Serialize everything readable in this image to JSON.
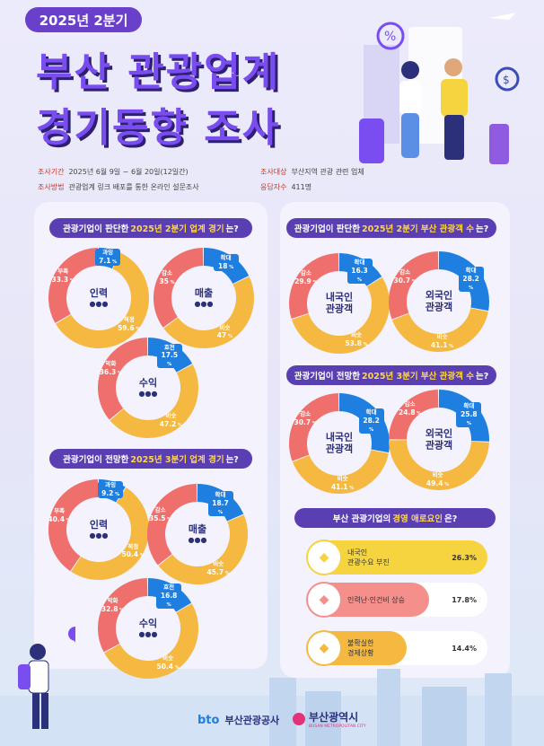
{
  "header": {
    "quarter_badge": "2025년 2분기",
    "title_line1": "부산 관광업계",
    "title_line2": "경기동향 조사"
  },
  "survey_info": {
    "period_label": "조사기간",
    "period_value": "2025년 6월 9일 ~ 6월 20일(12일간)",
    "method_label": "조사방법",
    "method_value": "관광업계 링크 배포를 통한 온라인 설문조사",
    "target_label": "조사대상",
    "target_value": "부산지역 관광 관련 업체",
    "respondents_label": "응답자수",
    "respondents_value": "411명"
  },
  "colors": {
    "up": "#1e7fe0",
    "flat": "#f5b942",
    "down": "#ef6f6c",
    "accent": "#5a3fb3"
  },
  "section_q2_economy": {
    "title_pre": "관광기업이 판단한",
    "title_hl": "2025년 2분기 업계 경기",
    "title_post": "는?",
    "donuts": [
      {
        "center": "인력",
        "up_label": "과잉",
        "up": "7.1",
        "flat_label": "적정",
        "flat": "59.6",
        "down_label": "부족",
        "down": "33.3"
      },
      {
        "center": "매출",
        "up_label": "확대",
        "up": "18",
        "flat_label": "비슷",
        "flat": "47",
        "down_label": "감소",
        "down": "35"
      },
      {
        "center": "수익",
        "up_label": "호전",
        "up": "17.5",
        "flat_label": "비슷",
        "flat": "47.2",
        "down_label": "악화",
        "down": "36.3"
      }
    ]
  },
  "section_q3_economy": {
    "title_pre": "관광기업이 전망한",
    "title_hl": "2025년 3분기 업계 경기",
    "title_post": "는?",
    "donuts": [
      {
        "center": "인력",
        "up_label": "과잉",
        "up": "9.2",
        "flat_label": "적정",
        "flat": "50.4",
        "down_label": "부족",
        "down": "40.4"
      },
      {
        "center": "매출",
        "up_label": "확대",
        "up": "18.7",
        "flat_label": "비슷",
        "flat": "45.7",
        "down_label": "감소",
        "down": "35.5"
      },
      {
        "center": "수익",
        "up_label": "호전",
        "up": "16.8",
        "flat_label": "비슷",
        "flat": "50.4",
        "down_label": "악화",
        "down": "32.8"
      }
    ]
  },
  "section_q2_tourists": {
    "title_pre": "관광기업이 판단한",
    "title_hl": "2025년 2분기 부산 관광객 수",
    "title_post": "는?",
    "donuts": [
      {
        "center_l1": "내국인",
        "center_l2": "관광객",
        "up_label": "확대",
        "up": "16.3",
        "flat_label": "비슷",
        "flat": "53.8",
        "down_label": "감소",
        "down": "29.9"
      },
      {
        "center_l1": "외국인",
        "center_l2": "관광객",
        "up_label": "확대",
        "up": "28.2",
        "flat_label": "비슷",
        "flat": "41.1",
        "down_label": "감소",
        "down": "30.7"
      }
    ]
  },
  "section_q3_tourists": {
    "title_pre": "관광기업이 전망한",
    "title_hl": "2025년 3분기 부산 관광객 수",
    "title_post": "는?",
    "donuts": [
      {
        "center_l1": "내국인",
        "center_l2": "관광객",
        "up_label": "확대",
        "up": "28.2",
        "flat_label": "비슷",
        "flat": "41.1",
        "down_label": "감소",
        "down": "30.7"
      },
      {
        "center_l1": "외국인",
        "center_l2": "관광객",
        "up_label": "확대",
        "up": "25.8",
        "flat_label": "비슷",
        "flat": "49.4",
        "down_label": "감소",
        "down": "24.8"
      }
    ]
  },
  "section_difficulties": {
    "title_pre": "부산 관광기업의",
    "title_hl": "경영 애로요인",
    "title_post": "은?",
    "items": [
      {
        "label_l1": "내국인",
        "label_l2": "관광수요 부진",
        "pct": "26.3%",
        "value": 26.3,
        "color": "#f5d43f"
      },
      {
        "label_l1": "인력난·인건비 상승",
        "label_l2": "",
        "pct": "17.8%",
        "value": 17.8,
        "color": "#f58f8c"
      },
      {
        "label_l1": "불확실한",
        "label_l2": "경제상황",
        "pct": "14.4%",
        "value": 14.4,
        "color": "#f5b942"
      }
    ]
  },
  "footer": {
    "org1": "부산관광공사",
    "org1_mark": "bto",
    "org2": "부산광역시",
    "org2_sub": "BUSAN METROPOLITAN CITY"
  },
  "unit": "%"
}
